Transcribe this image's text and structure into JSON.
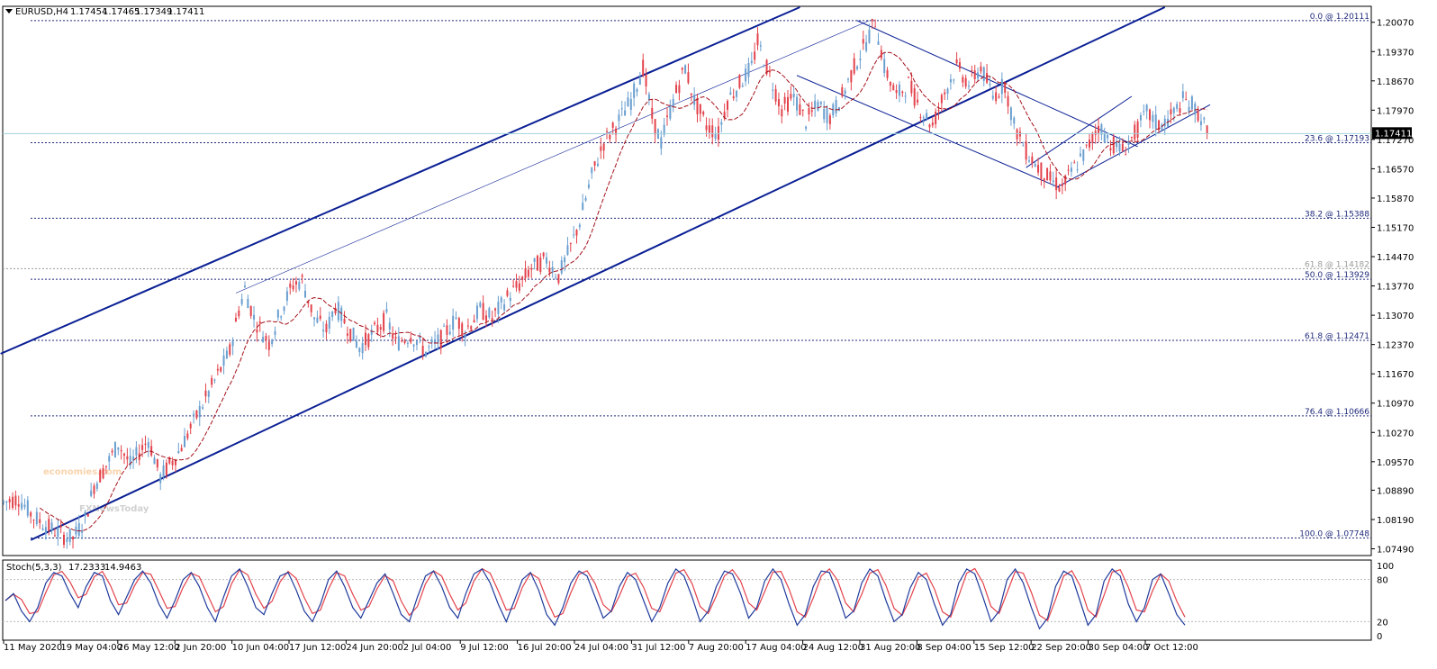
{
  "header": {
    "symbol": "EURUSD,H4",
    "open": "1.17454",
    "high": "1.17465",
    "low": "1.17349",
    "close": "1.17411"
  },
  "watermark": {
    "line1": "economies.com",
    "line2": "FXNewsToday"
  },
  "indicator": {
    "label": "Stoch(5,3,3)",
    "main": "17.2333",
    "signal": "14.9463",
    "levels": [
      "100",
      "80",
      "20",
      "0"
    ]
  },
  "colors": {
    "bull": "#6a9fd0",
    "bear": "#e3424b",
    "channel": "#0a1f94",
    "fib": "#1f2a7a",
    "ma": "#a4101a",
    "stoch_main": "#1f3a9c",
    "stoch_signal": "#e3424b"
  },
  "chart_data": {
    "type": "line",
    "title": "",
    "xlabel": "",
    "ylabel": "",
    "y_ticks": [
      "1.20070",
      "1.19370",
      "1.18670",
      "1.17970",
      "1.17270",
      "1.16570",
      "1.15870",
      "1.15170",
      "1.14470",
      "1.13770",
      "1.13070",
      "1.12370",
      "1.11670",
      "1.10970",
      "1.10270",
      "1.09570",
      "1.08890",
      "1.08190",
      "1.07490"
    ],
    "ylim": [
      1.0735,
      1.2043
    ],
    "current_price": "1.17411",
    "x_labels": [
      "11 May 2020",
      "19 May 04:00",
      "26 May 12:00",
      "2 Jun 20:00",
      "10 Jun 04:00",
      "17 Jun 12:00",
      "24 Jun 20:00",
      "2 Jul 04:00",
      "9 Jul 12:00",
      "16 Jul 20:00",
      "24 Jul 04:00",
      "31 Jul 12:00",
      "7 Aug 20:00",
      "17 Aug 04:00",
      "24 Aug 12:00",
      "31 Aug 20:00",
      "8 Sep 04:00",
      "15 Sep 12:00",
      "22 Sep 20:00",
      "30 Sep 04:00",
      "7 Oct 12:00"
    ],
    "fib_levels": [
      {
        "label": "0.0 @ 1.20111",
        "price": 1.20111
      },
      {
        "label": "23.6 @ 1.17193",
        "price": 1.17193
      },
      {
        "label": "38.2 @ 1.15388",
        "price": 1.15388
      },
      {
        "label": "61.8 @ 1.14182",
        "price": 1.14182,
        "faint": true
      },
      {
        "label": "50.0 @ 1.13929",
        "price": 1.13929
      },
      {
        "label": "61.8 @ 1.12471",
        "price": 1.12471
      },
      {
        "label": "76.4 @ 1.10666",
        "price": 1.10666
      },
      {
        "label": "100.0 @ 1.07748",
        "price": 1.07748
      }
    ],
    "price_path": [
      [
        0,
        1.086
      ],
      [
        5,
        1.087
      ],
      [
        10,
        1.0825
      ],
      [
        15,
        1.08
      ],
      [
        20,
        1.078
      ],
      [
        23,
        1.0774
      ],
      [
        27,
        1.082
      ],
      [
        30,
        1.09
      ],
      [
        35,
        1.096
      ],
      [
        38,
        1.1
      ],
      [
        42,
        1.095
      ],
      [
        48,
        1.101
      ],
      [
        52,
        1.092
      ],
      [
        58,
        1.098
      ],
      [
        65,
        1.108
      ],
      [
        70,
        1.115
      ],
      [
        75,
        1.122
      ],
      [
        78,
        1.132
      ],
      [
        80,
        1.137
      ],
      [
        83,
        1.13
      ],
      [
        88,
        1.124
      ],
      [
        92,
        1.132
      ],
      [
        96,
        1.138
      ],
      [
        99,
        1.139
      ],
      [
        103,
        1.13
      ],
      [
        107,
        1.127
      ],
      [
        110,
        1.133
      ],
      [
        114,
        1.128
      ],
      [
        118,
        1.123
      ],
      [
        122,
        1.126
      ],
      [
        127,
        1.13
      ],
      [
        130,
        1.124
      ],
      [
        135,
        1.126
      ],
      [
        140,
        1.122
      ],
      [
        145,
        1.125
      ],
      [
        150,
        1.13
      ],
      [
        153,
        1.127
      ],
      [
        158,
        1.132
      ],
      [
        162,
        1.13
      ],
      [
        167,
        1.135
      ],
      [
        171,
        1.138
      ],
      [
        175,
        1.142
      ],
      [
        180,
        1.144
      ],
      [
        184,
        1.14
      ],
      [
        188,
        1.147
      ],
      [
        191,
        1.153
      ],
      [
        195,
        1.164
      ],
      [
        199,
        1.172
      ],
      [
        203,
        1.176
      ],
      [
        208,
        1.182
      ],
      [
        212,
        1.19
      ],
      [
        215,
        1.178
      ],
      [
        218,
        1.172
      ],
      [
        222,
        1.182
      ],
      [
        226,
        1.19
      ],
      [
        229,
        1.182
      ],
      [
        233,
        1.176
      ],
      [
        237,
        1.174
      ],
      [
        240,
        1.182
      ],
      [
        244,
        1.186
      ],
      [
        248,
        1.19
      ],
      [
        250,
        1.196
      ],
      [
        254,
        1.188
      ],
      [
        258,
        1.18
      ],
      [
        262,
        1.183
      ],
      [
        266,
        1.177
      ],
      [
        270,
        1.181
      ],
      [
        274,
        1.178
      ],
      [
        278,
        1.183
      ],
      [
        282,
        1.19
      ],
      [
        286,
        1.196
      ],
      [
        289,
        1.2011
      ],
      [
        292,
        1.19
      ],
      [
        296,
        1.183
      ],
      [
        300,
        1.186
      ],
      [
        304,
        1.18
      ],
      [
        308,
        1.176
      ],
      [
        312,
        1.184
      ],
      [
        316,
        1.19
      ],
      [
        320,
        1.186
      ],
      [
        324,
        1.19
      ],
      [
        328,
        1.183
      ],
      [
        332,
        1.186
      ],
      [
        335,
        1.176
      ],
      [
        339,
        1.17
      ],
      [
        343,
        1.166
      ],
      [
        347,
        1.163
      ],
      [
        351,
        1.1612
      ],
      [
        355,
        1.166
      ],
      [
        359,
        1.17
      ],
      [
        363,
        1.176
      ],
      [
        367,
        1.172
      ],
      [
        371,
        1.17
      ],
      [
        375,
        1.174
      ],
      [
        379,
        1.179
      ],
      [
        383,
        1.176
      ],
      [
        387,
        1.178
      ],
      [
        391,
        1.182
      ],
      [
        394,
        1.181
      ],
      [
        397,
        1.178
      ],
      [
        399,
        1.1741
      ]
    ],
    "stochastic_main": [
      50,
      60,
      35,
      20,
      40,
      75,
      90,
      85,
      60,
      40,
      70,
      90,
      85,
      50,
      30,
      55,
      80,
      92,
      75,
      45,
      25,
      50,
      80,
      90,
      70,
      40,
      20,
      55,
      85,
      95,
      70,
      40,
      30,
      60,
      85,
      90,
      65,
      35,
      20,
      45,
      80,
      92,
      70,
      40,
      25,
      50,
      75,
      88,
      60,
      30,
      20,
      55,
      85,
      92,
      70,
      40,
      25,
      60,
      88,
      95,
      75,
      45,
      20,
      50,
      80,
      90,
      65,
      30,
      15,
      40,
      75,
      92,
      85,
      55,
      25,
      35,
      70,
      90,
      80,
      50,
      20,
      40,
      75,
      95,
      85,
      55,
      20,
      35,
      70,
      92,
      88,
      60,
      25,
      40,
      78,
      95,
      80,
      45,
      15,
      30,
      70,
      92,
      90,
      60,
      25,
      35,
      75,
      95,
      85,
      50,
      20,
      30,
      68,
      90,
      80,
      45,
      15,
      30,
      75,
      95,
      88,
      55,
      20,
      35,
      80,
      95,
      75,
      40,
      10,
      25,
      70,
      92,
      85,
      50,
      15,
      30,
      78,
      95,
      85,
      45,
      20,
      40,
      80,
      88,
      60,
      30,
      15
    ]
  }
}
